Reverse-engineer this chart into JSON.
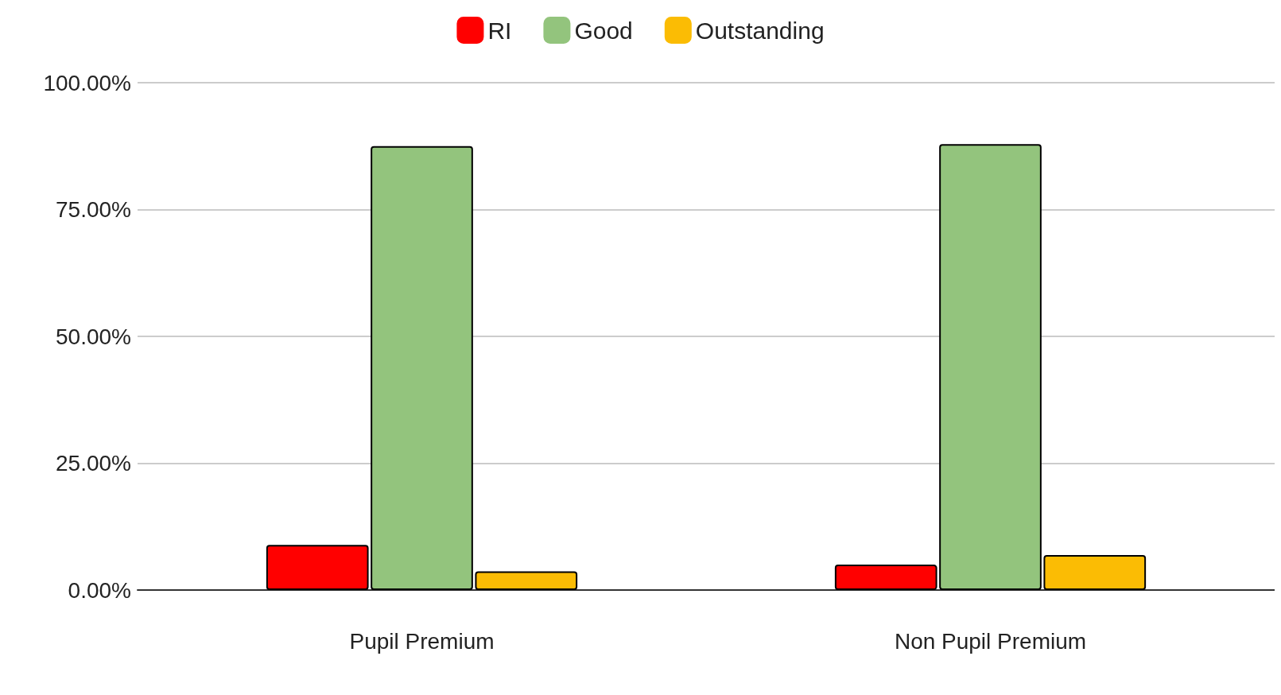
{
  "chart_data": {
    "type": "bar",
    "categories": [
      "Pupil Premium",
      "Non Pupil Premium"
    ],
    "series": [
      {
        "name": "RI",
        "color": "#ff0000",
        "values": [
          8.9,
          5.0
        ]
      },
      {
        "name": "Good",
        "color": "#93c47d",
        "values": [
          87.5,
          87.9
        ]
      },
      {
        "name": "Outstanding",
        "color": "#fbbc04",
        "values": [
          3.7,
          6.9
        ]
      }
    ],
    "ylim": [
      0,
      100
    ],
    "yticks": [
      {
        "value": 0,
        "label": "0.00%"
      },
      {
        "value": 25,
        "label": "25.00%"
      },
      {
        "value": 50,
        "label": "50.00%"
      },
      {
        "value": 75,
        "label": "75.00%"
      },
      {
        "value": 100,
        "label": "100.00%"
      }
    ],
    "grid": "y",
    "legend": "top"
  }
}
